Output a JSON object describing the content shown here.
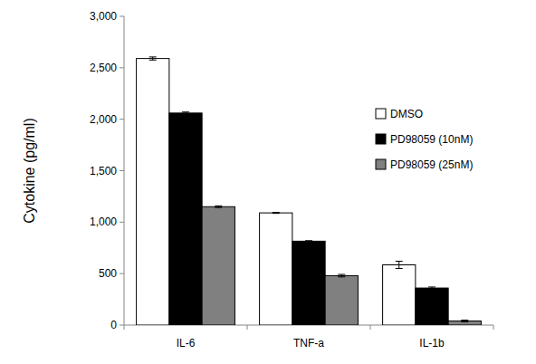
{
  "chart_data": {
    "type": "bar",
    "y_label": "Cytokine (pg/ml)",
    "categories": [
      "IL-6",
      "TNF-a",
      "IL-1b"
    ],
    "series": [
      {
        "name": "DMSO",
        "color": "#ffffff",
        "values": [
          2590,
          1090,
          585
        ],
        "errors": [
          15,
          5,
          35
        ]
      },
      {
        "name": "PD98059 (10nM)",
        "color": "#000000",
        "values": [
          2060,
          815,
          360
        ],
        "errors": [
          10,
          5,
          10
        ]
      },
      {
        "name": "PD98059 (25nM)",
        "color": "#808080",
        "values": [
          1150,
          480,
          40
        ],
        "errors": [
          8,
          12,
          8
        ]
      }
    ],
    "ylim": [
      0,
      3000
    ],
    "yticks": [
      0,
      500,
      {
        "value": 1000,
        "label": "1,000"
      },
      {
        "value": 1500,
        "label": "1,500"
      },
      {
        "value": 2000,
        "label": "2,000"
      },
      {
        "value": 2500,
        "label": "2,500"
      },
      {
        "value": 3000,
        "label": "3,000"
      }
    ],
    "grid": false,
    "legend": "upper right"
  }
}
